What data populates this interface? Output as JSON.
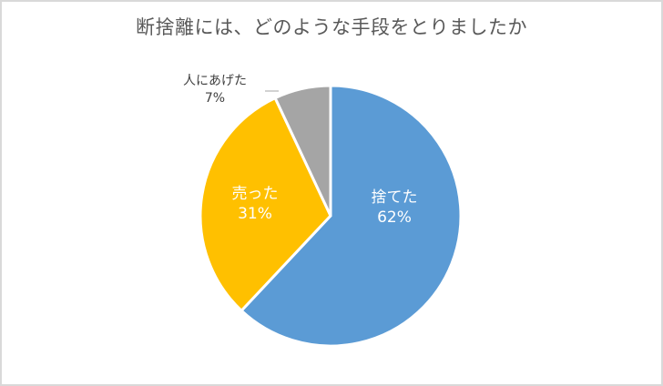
{
  "chart_data": {
    "type": "pie",
    "title": "断捨離には、どのような手段をとりましたか",
    "categories": [
      "捨てた",
      "売った",
      "人にあげた"
    ],
    "values": [
      62,
      31,
      7
    ],
    "unit": "%",
    "colors": [
      "#5b9bd5",
      "#ffc000",
      "#a5a5a5"
    ],
    "start_angle_deg": 0,
    "direction": "clockwise",
    "legend": "none",
    "data_labels": [
      {
        "category": "捨てた",
        "value_text": "62%",
        "position": "inside"
      },
      {
        "category": "売った",
        "value_text": "31%",
        "position": "inside"
      },
      {
        "category": "人にあげた",
        "value_text": "7%",
        "position": "outside-with-leader"
      }
    ]
  },
  "labels": {
    "throw": {
      "name": "捨てた",
      "pct": "62%"
    },
    "sell": {
      "name": "売った",
      "pct": "31%"
    },
    "give": {
      "name": "人にあげた",
      "pct": "7%"
    }
  }
}
